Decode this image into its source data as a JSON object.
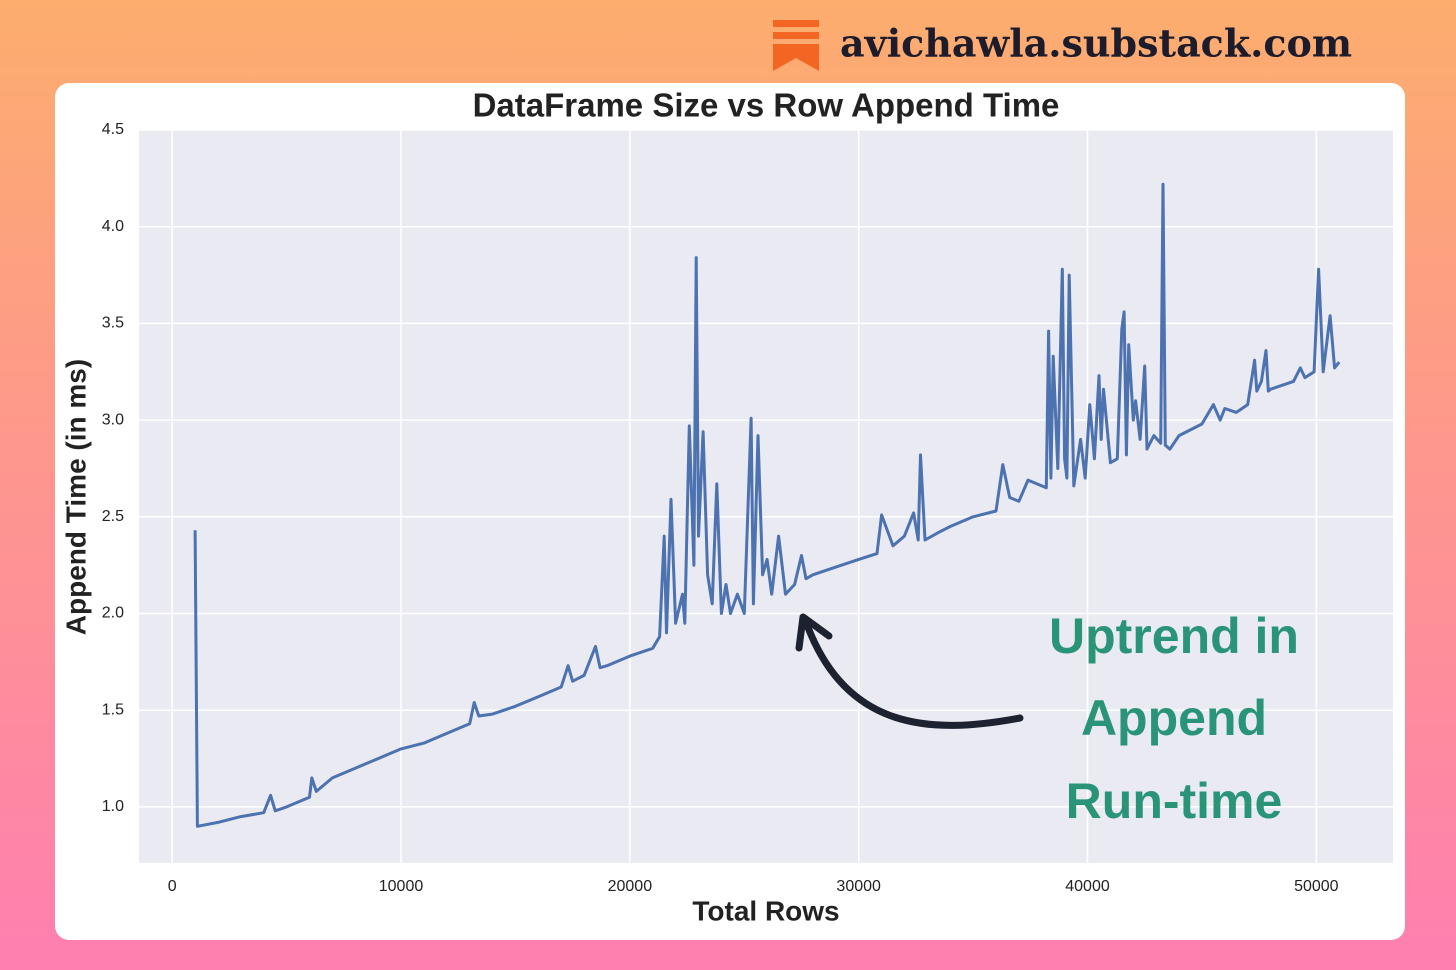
{
  "brand": "avichawla.substack.com",
  "chart_data": {
    "type": "line",
    "title": "DataFrame Size vs Row Append Time",
    "xlabel": "Total Rows",
    "ylabel": "Append Time (in ms)",
    "annotation": [
      "Uptrend in",
      "Append",
      "Run-time"
    ],
    "xlim": [
      -1450,
      53350
    ],
    "ylim": [
      0.71,
      4.5
    ],
    "xticks": [
      0,
      10000,
      20000,
      30000,
      40000,
      50000
    ],
    "yticks": [
      {
        "value": 1,
        "label": "1.0"
      },
      1.5,
      {
        "value": 2,
        "label": "2.0"
      },
      2.5,
      {
        "value": 3,
        "label": "3.0"
      },
      3.5,
      {
        "value": 4,
        "label": "4.0"
      },
      4.5
    ],
    "grid": true,
    "series": [
      {
        "name": "Append Time",
        "color": "#4c72b0",
        "x": [
          1000,
          1100,
          2000,
          3000,
          4000,
          4300,
          4500,
          5000,
          6000,
          6100,
          6300,
          7000,
          8000,
          9000,
          10000,
          11000,
          12000,
          13000,
          13200,
          13400,
          14000,
          15000,
          16000,
          17000,
          17300,
          17500,
          18000,
          18500,
          18700,
          19000,
          20000,
          21000,
          21300,
          21500,
          21600,
          21800,
          22000,
          22300,
          22400,
          22600,
          22800,
          22900,
          23000,
          23200,
          23400,
          23600,
          23800,
          24000,
          24200,
          24400,
          24700,
          25000,
          25300,
          25400,
          25600,
          25800,
          26000,
          26200,
          26500,
          26800,
          27200,
          27500,
          27700,
          28000,
          29000,
          30000,
          30800,
          31000,
          31500,
          32000,
          32400,
          32600,
          32700,
          32900,
          33500,
          34000,
          35000,
          36000,
          36300,
          36600,
          37000,
          37400,
          38200,
          38300,
          38400,
          38500,
          38700,
          38900,
          39000,
          39100,
          39200,
          39400,
          39700,
          39900,
          40100,
          40300,
          40500,
          40600,
          40700,
          41000,
          41300,
          41500,
          41600,
          41700,
          41800,
          42000,
          42100,
          42300,
          42500,
          42600,
          42900,
          43200,
          43300,
          43400,
          43600,
          44000,
          45000,
          45500,
          45800,
          46000,
          46500,
          47000,
          47300,
          47400,
          47600,
          47800,
          47900,
          48000,
          49000,
          49300,
          49500,
          49900,
          50100,
          50300,
          50600,
          50800,
          51000
        ],
        "values": [
          2.43,
          0.9,
          0.92,
          0.95,
          0.97,
          1.06,
          0.98,
          1.0,
          1.05,
          1.15,
          1.08,
          1.15,
          1.2,
          1.25,
          1.3,
          1.33,
          1.38,
          1.43,
          1.54,
          1.47,
          1.48,
          1.52,
          1.57,
          1.62,
          1.73,
          1.65,
          1.68,
          1.83,
          1.72,
          1.73,
          1.78,
          1.82,
          1.88,
          2.4,
          1.9,
          2.59,
          1.95,
          2.1,
          1.95,
          2.97,
          2.25,
          3.84,
          2.4,
          2.94,
          2.2,
          2.05,
          2.67,
          2.0,
          2.15,
          2.0,
          2.1,
          2.0,
          3.01,
          2.05,
          2.92,
          2.2,
          2.28,
          2.1,
          2.4,
          2.1,
          2.15,
          2.3,
          2.18,
          2.2,
          2.24,
          2.28,
          2.31,
          2.51,
          2.35,
          2.4,
          2.52,
          2.38,
          2.82,
          2.38,
          2.42,
          2.45,
          2.5,
          2.53,
          2.77,
          2.6,
          2.58,
          2.69,
          2.65,
          3.46,
          2.7,
          3.33,
          2.75,
          3.78,
          2.8,
          2.7,
          3.75,
          2.66,
          2.9,
          2.7,
          3.08,
          2.8,
          3.23,
          2.9,
          3.16,
          2.78,
          2.8,
          3.47,
          3.56,
          2.82,
          3.39,
          3.0,
          3.1,
          2.9,
          3.28,
          2.85,
          2.92,
          2.88,
          4.22,
          2.87,
          2.85,
          2.92,
          2.98,
          3.08,
          3.0,
          3.06,
          3.04,
          3.08,
          3.31,
          3.15,
          3.2,
          3.36,
          3.15,
          3.16,
          3.2,
          3.27,
          3.22,
          3.25,
          3.78,
          3.25,
          3.54,
          3.27,
          3.3
        ]
      }
    ]
  }
}
